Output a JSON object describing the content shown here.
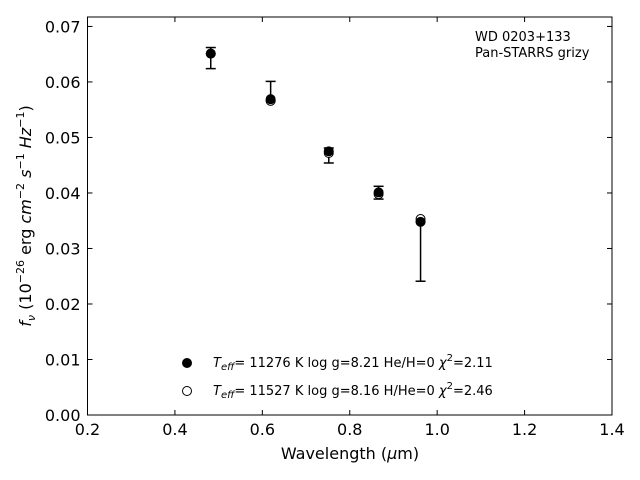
{
  "chart_data": {
    "type": "scatter",
    "title": "",
    "xlabel": "Wavelength (μm)",
    "ylabel": "fν (10⁻²⁶ erg cm⁻² s⁻¹ Hz⁻¹)",
    "xlim": [
      0.2,
      1.4
    ],
    "ylim": [
      0.0,
      0.0717
    ],
    "xticks": [
      "0.2",
      "0.4",
      "0.6",
      "0.8",
      "1.0",
      "1.2",
      "1.4"
    ],
    "yticks": [
      "0.00",
      "0.01",
      "0.02",
      "0.03",
      "0.04",
      "0.05",
      "0.06",
      "0.07"
    ],
    "grid": false,
    "annotation": [
      "WD 0203+133",
      "Pan-STARRS grizy"
    ],
    "annotation_position": "top-right",
    "legend_position": "bottom-center",
    "series": [
      {
        "name": "Teff= 11276 K  log g=8.21  He/H=0  χ²=2.11",
        "marker": "filled-circle",
        "color": "#000000",
        "x": [
          0.482,
          0.619,
          0.752,
          0.866,
          0.962
        ],
        "y": [
          0.0651,
          0.0569,
          0.0475,
          0.0401,
          0.0348
        ]
      },
      {
        "name": "Teff= 11527 K  log g=8.16  H/He=0  χ²=2.46",
        "marker": "open-circle",
        "color": "#000000",
        "x": [
          0.482,
          0.619,
          0.752,
          0.866,
          0.962
        ],
        "y": [
          0.0651,
          0.0566,
          0.0472,
          0.0398,
          0.0353
        ]
      }
    ],
    "observed": {
      "x": [
        0.482,
        0.619,
        0.752,
        0.866,
        0.962
      ],
      "y": [
        0.0651,
        0.0569,
        0.0475,
        0.0401,
        0.0348
      ],
      "err_low": [
        0.0624,
        0.0566,
        0.0454,
        0.0389,
        0.0241
      ],
      "err_high": [
        0.0662,
        0.0601,
        0.0481,
        0.0412,
        0.0348
      ]
    }
  }
}
